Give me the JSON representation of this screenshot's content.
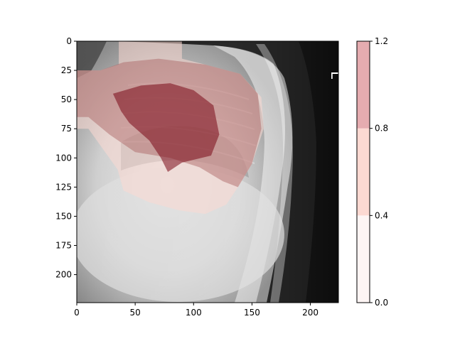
{
  "chart_data": {
    "type": "heatmap",
    "title": "",
    "xlabel": "",
    "ylabel": "",
    "xlim": [
      0,
      224
    ],
    "ylim": [
      224,
      0
    ],
    "x_ticks": [
      0,
      50,
      100,
      150,
      200
    ],
    "y_ticks": [
      0,
      25,
      50,
      75,
      100,
      125,
      150,
      175,
      200
    ],
    "background": "grayscale lateral chest x-ray image",
    "image_side_marker": "L",
    "overlay": {
      "colormap_levels": [
        0.0,
        0.4,
        0.8,
        1.2
      ],
      "level_colors": [
        "#fdf5f4",
        "#fcd9d2",
        "#e5acb0"
      ],
      "regions": [
        {
          "level": 0.8,
          "color": "#fcd9d2",
          "opacity": 0.55,
          "polygon": [
            [
              36,
              0
            ],
            [
              90,
              0
            ],
            [
              90,
              15
            ],
            [
              110,
              20
            ],
            [
              140,
              28
            ],
            [
              158,
              48
            ],
            [
              160,
              75
            ],
            [
              150,
              105
            ],
            [
              138,
              125
            ],
            [
              128,
              140
            ],
            [
              110,
              148
            ],
            [
              88,
              145
            ],
            [
              62,
              138
            ],
            [
              40,
              128
            ],
            [
              35,
              110
            ],
            [
              10,
              75
            ],
            [
              0,
              75
            ],
            [
              0,
              25
            ],
            [
              20,
              25
            ],
            [
              36,
              20
            ]
          ]
        },
        {
          "level": 0.8,
          "color": "#a86060",
          "opacity": 0.45,
          "polygon": [
            [
              0,
              25
            ],
            [
              20,
              25
            ],
            [
              40,
              18
            ],
            [
              70,
              15
            ],
            [
              110,
              20
            ],
            [
              140,
              28
            ],
            [
              155,
              45
            ],
            [
              158,
              75
            ],
            [
              150,
              105
            ],
            [
              138,
              125
            ],
            [
              125,
              120
            ],
            [
              105,
              108
            ],
            [
              80,
              100
            ],
            [
              50,
              95
            ],
            [
              28,
              80
            ],
            [
              10,
              65
            ],
            [
              0,
              65
            ]
          ]
        },
        {
          "level": 1.2,
          "color": "#7a0a18",
          "opacity": 0.55,
          "polygon": [
            [
              31,
              45
            ],
            [
              55,
              38
            ],
            [
              80,
              36
            ],
            [
              100,
              42
            ],
            [
              117,
              55
            ],
            [
              122,
              80
            ],
            [
              115,
              98
            ],
            [
              90,
              104
            ],
            [
              78,
              112
            ],
            [
              72,
              100
            ],
            [
              62,
              85
            ],
            [
              45,
              70
            ],
            [
              38,
              60
            ]
          ]
        }
      ]
    },
    "colorbar": {
      "ticks": [
        0.0,
        0.4,
        0.8,
        1.2
      ],
      "tick_labels": [
        "0.0",
        "0.4",
        "0.8",
        "1.2"
      ]
    }
  }
}
